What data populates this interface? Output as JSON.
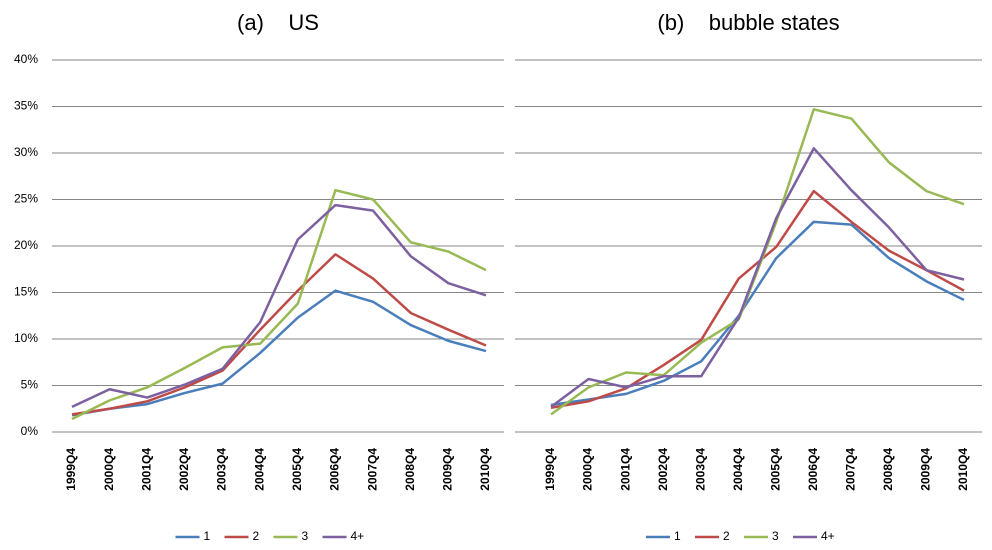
{
  "chart_data": [
    {
      "type": "line",
      "title": "(a)    US",
      "categories": [
        "1999Q4",
        "2000Q4",
        "2001Q4",
        "2002Q4",
        "2003Q4",
        "2004Q4",
        "2005Q4",
        "2006Q4",
        "2007Q4",
        "2008Q4",
        "2009Q4",
        "2010Q4"
      ],
      "series": [
        {
          "name": "1",
          "color": "#4a7ebb",
          "values": [
            1.8,
            2.5,
            3.0,
            4.2,
            5.2,
            8.5,
            12.3,
            15.2,
            14.0,
            11.5,
            9.8,
            8.7
          ]
        },
        {
          "name": "2",
          "color": "#be4b48",
          "values": [
            1.9,
            2.5,
            3.3,
            4.8,
            6.6,
            11.0,
            15.2,
            19.1,
            16.5,
            12.8,
            11.0,
            9.3
          ]
        },
        {
          "name": "3",
          "color": "#98b954",
          "values": [
            1.4,
            3.4,
            4.8,
            6.9,
            9.1,
            9.5,
            13.8,
            26.0,
            25.0,
            20.4,
            19.4,
            17.4
          ]
        },
        {
          "name": "4+",
          "color": "#7d60a0",
          "values": [
            2.7,
            4.6,
            3.7,
            5.1,
            6.8,
            11.8,
            20.7,
            24.4,
            23.8,
            18.9,
            16.0,
            14.7
          ]
        }
      ],
      "ylim": [
        0,
        40
      ],
      "yticks": [
        {
          "value": 0,
          "label": "0%"
        },
        {
          "value": 5,
          "label": "5%"
        },
        {
          "value": 10,
          "label": "10%"
        },
        {
          "value": 15,
          "label": "15%"
        },
        {
          "value": 20,
          "label": "20%"
        },
        {
          "value": 25,
          "label": "25%"
        },
        {
          "value": 30,
          "label": "30%"
        },
        {
          "value": 35,
          "label": "35%"
        },
        {
          "value": 40,
          "label": "40%"
        }
      ],
      "show_ytick_labels": true,
      "grid": true,
      "legend": "bottom"
    },
    {
      "type": "line",
      "title": "(b)    bubble states",
      "categories": [
        "1999Q4",
        "2000Q4",
        "2001Q4",
        "2002Q4",
        "2003Q4",
        "2004Q4",
        "2005Q4",
        "2006Q4",
        "2007Q4",
        "2008Q4",
        "2009Q4",
        "2010Q4"
      ],
      "series": [
        {
          "name": "1",
          "color": "#4a7ebb",
          "values": [
            2.9,
            3.5,
            4.1,
            5.5,
            7.6,
            12.5,
            18.7,
            22.6,
            22.3,
            18.7,
            16.2,
            14.2
          ]
        },
        {
          "name": "2",
          "color": "#be4b48",
          "values": [
            2.6,
            3.3,
            4.7,
            7.2,
            9.9,
            16.5,
            19.9,
            25.9,
            22.6,
            19.5,
            17.4,
            15.2
          ]
        },
        {
          "name": "3",
          "color": "#98b954",
          "values": [
            1.9,
            4.8,
            6.4,
            6.1,
            9.6,
            12.1,
            22.6,
            34.7,
            33.7,
            29.0,
            25.9,
            24.5
          ]
        },
        {
          "name": "4+",
          "color": "#7d60a0",
          "values": [
            2.7,
            5.7,
            4.8,
            6.0,
            6.0,
            12.3,
            23.0,
            30.5,
            26.0,
            22.0,
            17.4,
            16.4
          ]
        }
      ],
      "ylim": [
        0,
        40
      ],
      "yticks": [
        0,
        5,
        10,
        15,
        20,
        25,
        30,
        35,
        40
      ],
      "show_ytick_labels": false,
      "grid": true,
      "legend": "bottom"
    }
  ]
}
